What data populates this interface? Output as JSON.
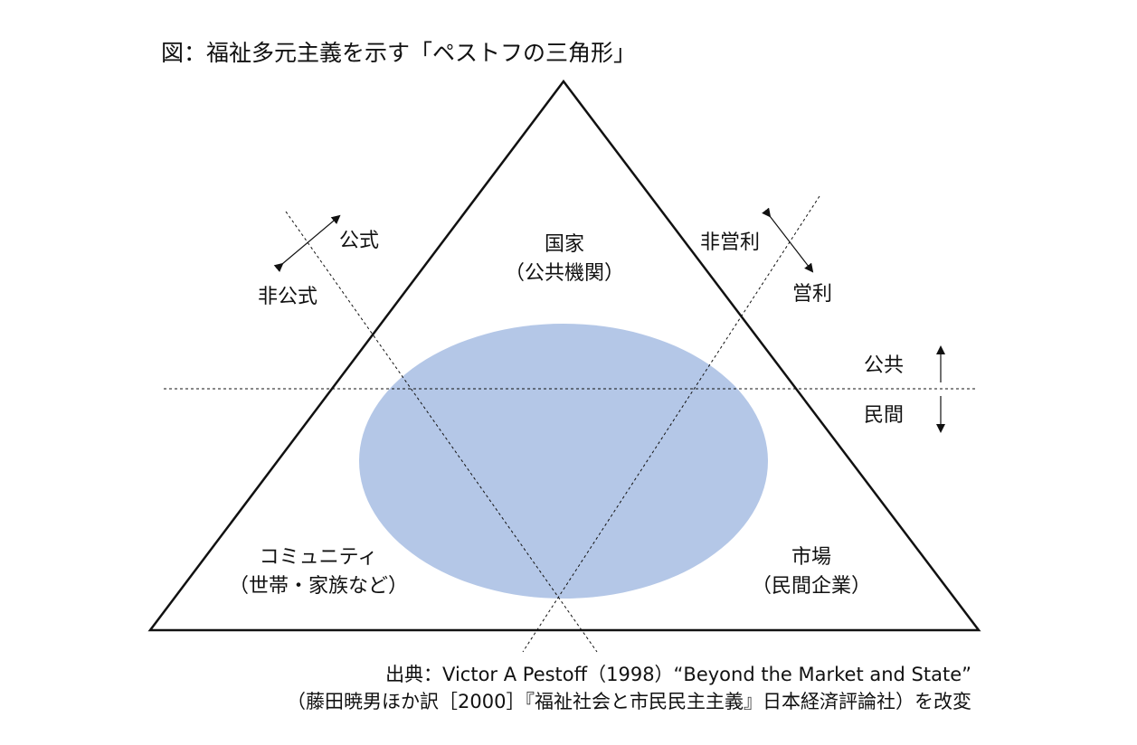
{
  "title": "図：福祉多元主義を示す「ペストフの三角形」",
  "sectors": {
    "state": {
      "name": "国家",
      "detail": "（公共機関）"
    },
    "community": {
      "name": "コミュニティ",
      "detail": "（世帯・家族など）"
    },
    "market": {
      "name": "市場",
      "detail": "（民間企業）"
    }
  },
  "axes": {
    "formal": "公式",
    "informal": "非公式",
    "nonprofit": "非営利",
    "forprofit": "営利",
    "public": "公共",
    "private": "民間"
  },
  "colors": {
    "ellipse": "#b4c7e7",
    "line": "#111111"
  },
  "source": {
    "line1": "出典：Victor A Pestoff（1998）“Beyond the Market and State”",
    "line2": "（藤田暁男ほか訳［2000］『福祉社会と市民民主主義』日本経済評論社）を改変"
  }
}
